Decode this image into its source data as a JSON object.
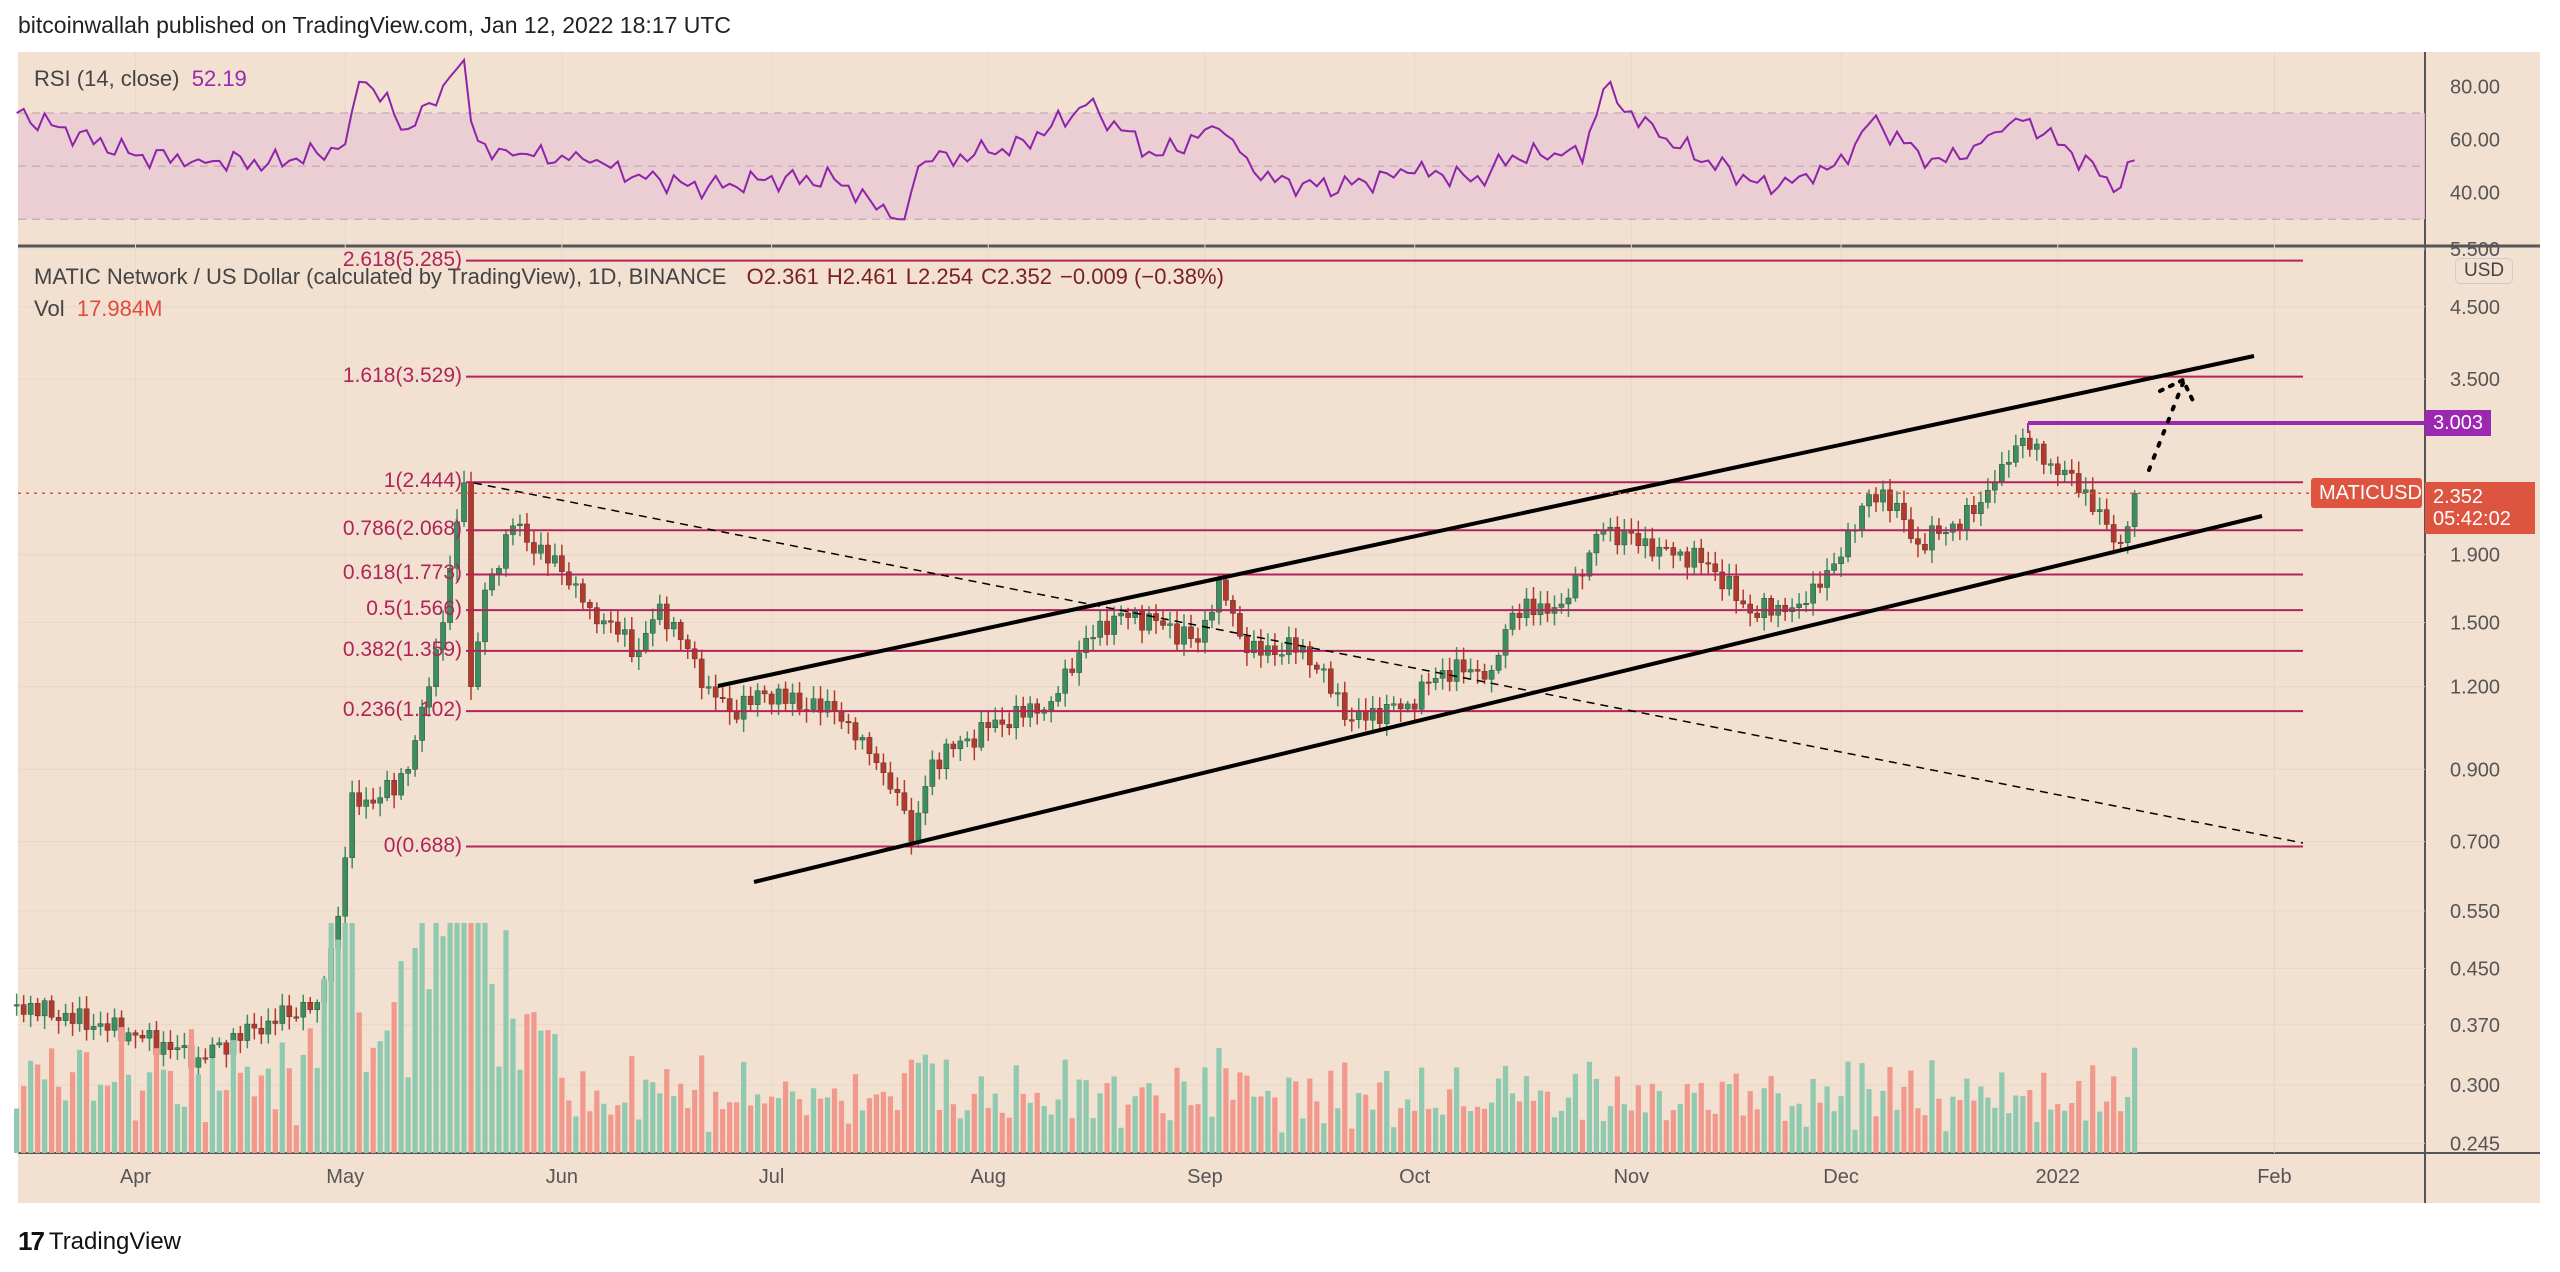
{
  "publisher_line": "bitcoinwallah published on TradingView.com, Jan 12, 2022 18:17 UTC",
  "logo_text": "TradingView",
  "rsi": {
    "label": "RSI (14, close)",
    "value": "52.19",
    "ticks": [
      "80.00",
      "60.00",
      "40.00"
    ]
  },
  "symbol": {
    "title": "MATIC Network / US Dollar (calculated by TradingView), 1D, BINANCE",
    "open": "O2.361",
    "high": "H2.461",
    "low": "L2.254",
    "close": "C2.352",
    "change": "−0.009 (−0.38%)",
    "vol_label": "Vol",
    "vol_value": "17.984M",
    "ticker": "MATICUSD",
    "last_price": "2.352",
    "countdown": "05:42:02",
    "currency": "USD",
    "resistance_label": "3.003"
  },
  "colors": {
    "bg": "#f2e0d0",
    "up": "#3b8f5f",
    "down": "#b5392b",
    "vol_up": "#8ec9b0",
    "vol_down": "#f0998c",
    "fib": "#b0245a",
    "rsi": "#8e24aa",
    "price_tag": "#dd5540",
    "resistance": "#9c27b0"
  },
  "chart_data": {
    "type": "candlestick",
    "title": "MATIC Network / US Dollar, 1D, BINANCE",
    "y_scale": "log",
    "price_ticks": [
      "5.500",
      "4.500",
      "3.500",
      "1.900",
      "1.500",
      "1.200",
      "0.900",
      "0.700",
      "0.550",
      "0.450",
      "0.370",
      "0.300",
      "0.245"
    ],
    "x_ticks": [
      {
        "label": "Apr",
        "date": "2021-04-01"
      },
      {
        "label": "May",
        "date": "2021-05-01"
      },
      {
        "label": "Jun",
        "date": "2021-06-01"
      },
      {
        "label": "Jul",
        "date": "2021-07-01"
      },
      {
        "label": "Aug",
        "date": "2021-08-01"
      },
      {
        "label": "Sep",
        "date": "2021-09-01"
      },
      {
        "label": "Oct",
        "date": "2021-10-01"
      },
      {
        "label": "Nov",
        "date": "2021-11-01"
      },
      {
        "label": "Dec",
        "date": "2021-12-01"
      },
      {
        "label": "2022",
        "date": "2022-01-01"
      },
      {
        "label": "Feb",
        "date": "2022-02-01"
      }
    ],
    "close_anchors": [
      [
        "2021-03-15",
        0.397
      ],
      [
        "2021-03-31",
        0.36
      ],
      [
        "2021-04-10",
        0.33
      ],
      [
        "2021-04-20",
        0.375
      ],
      [
        "2021-04-27",
        0.4
      ],
      [
        "2021-04-30",
        0.54
      ],
      [
        "2021-05-02",
        0.83
      ],
      [
        "2021-05-05",
        0.8
      ],
      [
        "2021-05-10",
        0.9
      ],
      [
        "2021-05-13",
        1.2
      ],
      [
        "2021-05-15",
        1.5
      ],
      [
        "2021-05-17",
        2.13
      ],
      [
        "2021-05-18",
        2.44
      ],
      [
        "2021-05-19",
        1.2
      ],
      [
        "2021-05-21",
        1.68
      ],
      [
        "2021-05-25",
        2.1
      ],
      [
        "2021-06-01",
        1.79
      ],
      [
        "2021-06-05",
        1.58
      ],
      [
        "2021-06-12",
        1.36
      ],
      [
        "2021-06-15",
        1.6
      ],
      [
        "2021-06-22",
        1.2
      ],
      [
        "2021-06-25",
        1.1
      ],
      [
        "2021-06-30",
        1.17
      ],
      [
        "2021-07-10",
        1.1
      ],
      [
        "2021-07-15",
        0.95
      ],
      [
        "2021-07-20",
        0.78
      ],
      [
        "2021-07-21",
        0.7
      ],
      [
        "2021-07-24",
        0.93
      ],
      [
        "2021-08-01",
        1.04
      ],
      [
        "2021-08-10",
        1.14
      ],
      [
        "2021-08-15",
        1.42
      ],
      [
        "2021-08-20",
        1.55
      ],
      [
        "2021-08-25",
        1.51
      ],
      [
        "2021-08-31",
        1.4
      ],
      [
        "2021-09-03",
        1.74
      ],
      [
        "2021-09-07",
        1.35
      ],
      [
        "2021-09-15",
        1.38
      ],
      [
        "2021-09-22",
        1.07
      ],
      [
        "2021-09-30",
        1.13
      ],
      [
        "2021-10-05",
        1.27
      ],
      [
        "2021-10-12",
        1.27
      ],
      [
        "2021-10-15",
        1.55
      ],
      [
        "2021-10-22",
        1.6
      ],
      [
        "2021-10-28",
        2.07
      ],
      [
        "2021-11-05",
        1.95
      ],
      [
        "2021-11-12",
        1.84
      ],
      [
        "2021-11-18",
        1.55
      ],
      [
        "2021-11-25",
        1.6
      ],
      [
        "2021-11-30",
        1.84
      ],
      [
        "2021-12-04",
        2.25
      ],
      [
        "2021-12-07",
        2.38
      ],
      [
        "2021-12-12",
        1.97
      ],
      [
        "2021-12-20",
        2.19
      ],
      [
        "2021-12-24",
        2.6
      ],
      [
        "2021-12-27",
        2.85
      ],
      [
        "2021-12-30",
        2.6
      ],
      [
        "2022-01-03",
        2.52
      ],
      [
        "2022-01-08",
        2.11
      ],
      [
        "2022-01-10",
        1.98
      ],
      [
        "2022-01-12",
        2.352
      ]
    ],
    "rsi_anchors": [
      [
        "2021-03-15",
        70
      ],
      [
        "2021-04-01",
        54
      ],
      [
        "2021-04-20",
        51
      ],
      [
        "2021-05-01",
        57
      ],
      [
        "2021-05-03",
        85
      ],
      [
        "2021-05-10",
        64
      ],
      [
        "2021-05-18",
        90
      ],
      [
        "2021-05-19",
        67
      ],
      [
        "2021-05-22",
        54
      ],
      [
        "2021-06-01",
        54
      ],
      [
        "2021-06-10",
        48
      ],
      [
        "2021-06-20",
        42
      ],
      [
        "2021-07-01",
        45
      ],
      [
        "2021-07-10",
        45
      ],
      [
        "2021-07-20",
        30
      ],
      [
        "2021-07-22",
        51
      ],
      [
        "2021-08-05",
        57
      ],
      [
        "2021-08-15",
        73
      ],
      [
        "2021-08-25",
        54
      ],
      [
        "2021-09-03",
        64
      ],
      [
        "2021-09-10",
        45
      ],
      [
        "2021-09-20",
        42
      ],
      [
        "2021-10-01",
        48
      ],
      [
        "2021-10-10",
        45
      ],
      [
        "2021-10-15",
        54
      ],
      [
        "2021-10-25",
        54
      ],
      [
        "2021-10-28",
        79
      ],
      [
        "2021-11-05",
        61
      ],
      [
        "2021-11-20",
        42
      ],
      [
        "2021-12-01",
        51
      ],
      [
        "2021-12-05",
        67
      ],
      [
        "2021-12-15",
        51
      ],
      [
        "2021-12-27",
        67
      ],
      [
        "2022-01-02",
        57
      ],
      [
        "2022-01-10",
        42
      ],
      [
        "2022-01-12",
        52.19
      ]
    ],
    "fibonacci": [
      {
        "label": "2.618(5.285)",
        "price": 5.285
      },
      {
        "label": "1.618(3.529)",
        "price": 3.529
      },
      {
        "label": "1(2.444)",
        "price": 2.444
      },
      {
        "label": "0.786(2.068)",
        "price": 2.068
      },
      {
        "label": "0.618(1.773)",
        "price": 1.773
      },
      {
        "label": "0.5(1.566)",
        "price": 1.566
      },
      {
        "label": "0.382(1.359)",
        "price": 1.359
      },
      {
        "label": "0.236(1.102)",
        "price": 1.102
      },
      {
        "label": "0(0.688)",
        "price": 0.688
      }
    ],
    "resistance": 3.003,
    "last": 2.352
  }
}
